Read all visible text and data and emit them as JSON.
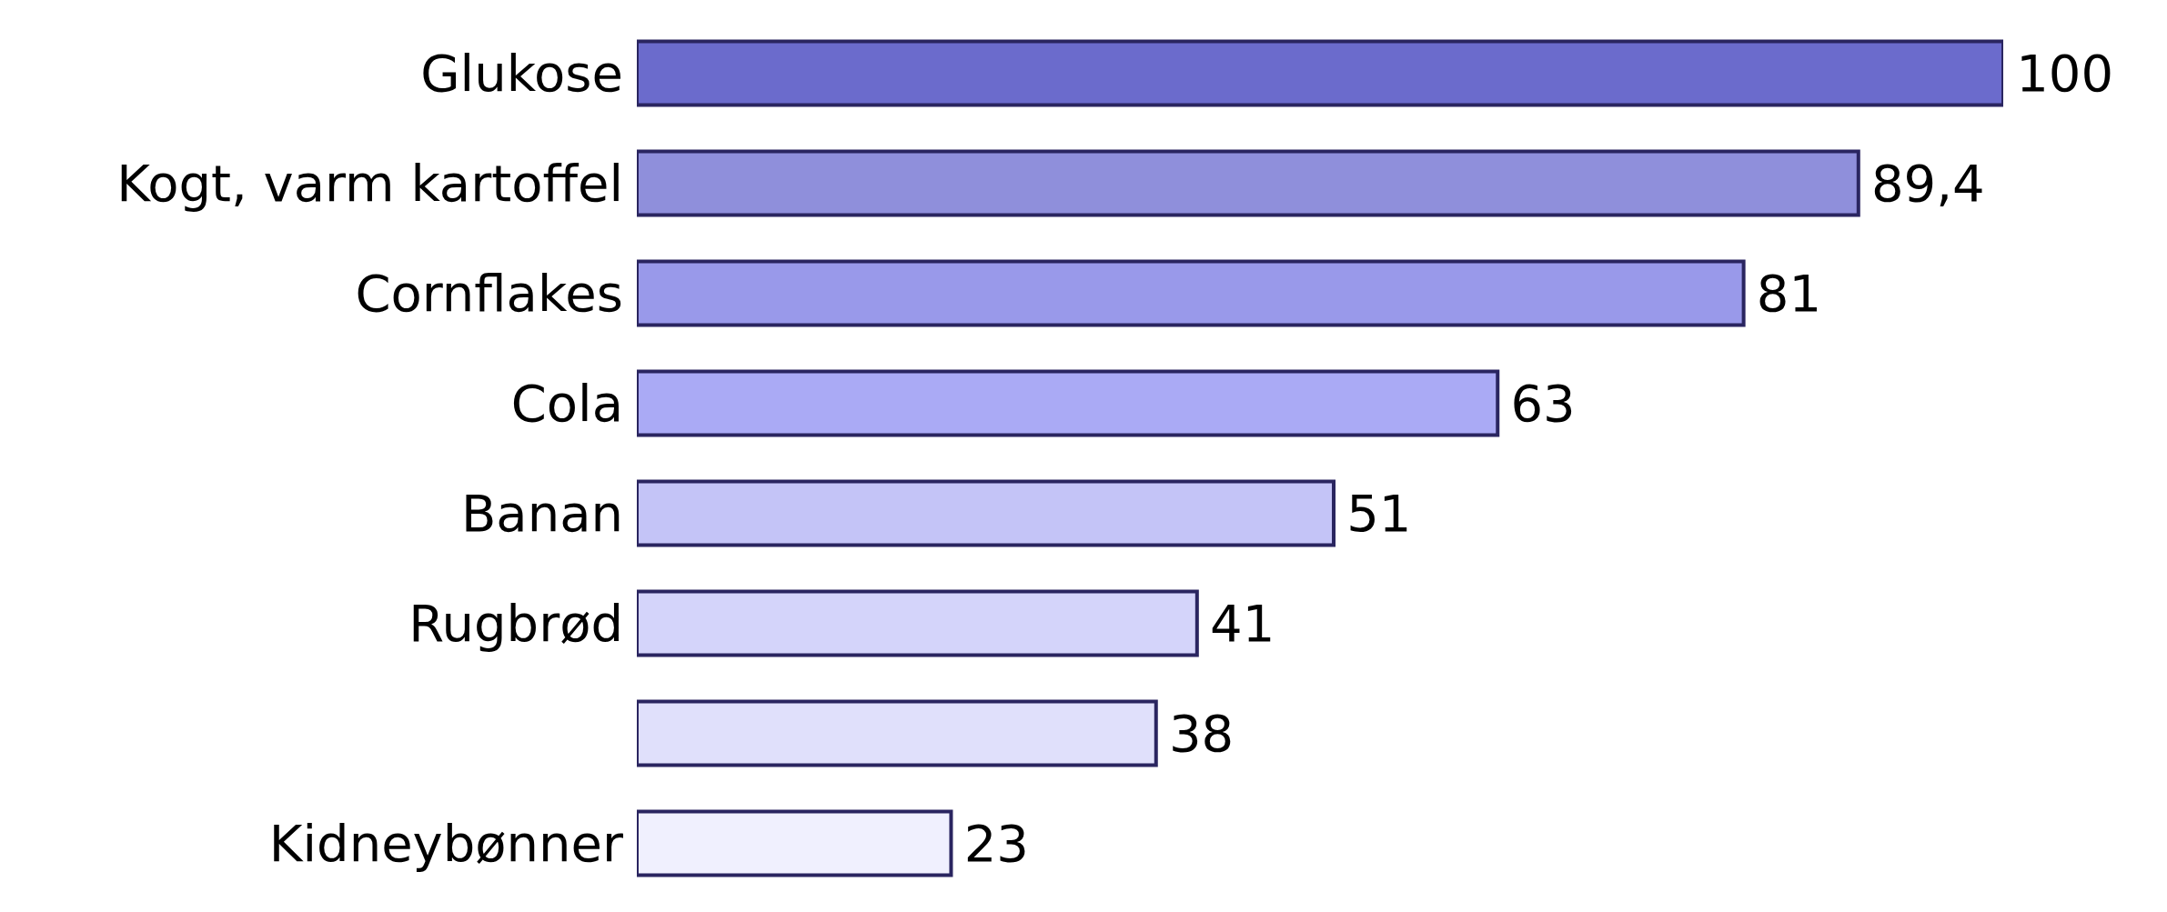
{
  "chart_data": {
    "type": "bar",
    "orientation": "horizontal",
    "categories": [
      "Glukose",
      "Kogt, varm kartoffel",
      "Cornflakes",
      "Cola",
      "Banan",
      "Rugbrød",
      null,
      "Kidneybønner"
    ],
    "values": [
      100,
      89.4,
      81,
      63,
      51,
      41,
      38,
      23
    ],
    "value_labels": [
      "100",
      "89,4",
      "81",
      "63",
      "51",
      "41",
      "38",
      "23"
    ],
    "colors": [
      "#6b6bcc",
      "#8f8fdb",
      "#9999ea",
      "#aaaaf5",
      "#c4c4f7",
      "#d4d4fa",
      "#e0e0fb",
      "#f0f0fe"
    ],
    "tick_labels": "y"
  }
}
